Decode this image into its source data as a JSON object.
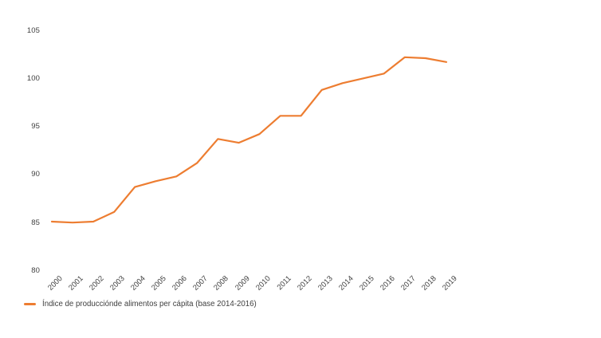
{
  "chart_data": {
    "type": "line",
    "title": "",
    "xlabel": "",
    "ylabel": "",
    "categories": [
      "2000",
      "2001",
      "2002",
      "2003",
      "2004",
      "2005",
      "2006",
      "2007",
      "2008",
      "2009",
      "2010",
      "2011",
      "2012",
      "2013",
      "2014",
      "2015",
      "2016",
      "2017",
      "2018",
      "2019"
    ],
    "series": [
      {
        "name": "Índice de producciónde alimentos per cápita (base 2014-2016)",
        "color": "#ED7D31",
        "values": [
          85.1,
          85.0,
          85.1,
          86.1,
          88.7,
          89.3,
          89.8,
          91.2,
          93.7,
          93.3,
          94.2,
          96.1,
          96.1,
          98.8,
          99.5,
          100.0,
          100.5,
          102.2,
          102.1,
          101.7
        ]
      }
    ],
    "ylim": [
      80,
      105
    ],
    "yticks": [
      80,
      85,
      90,
      95,
      100,
      105
    ],
    "grid": false,
    "legend_position": "bottom-left"
  },
  "legend": {
    "label": "Índice de producciónde alimentos per cápita (base 2014-2016)"
  },
  "colors": {
    "series": "#ED7D31",
    "tick_text": "#404040",
    "background": "#ffffff"
  }
}
